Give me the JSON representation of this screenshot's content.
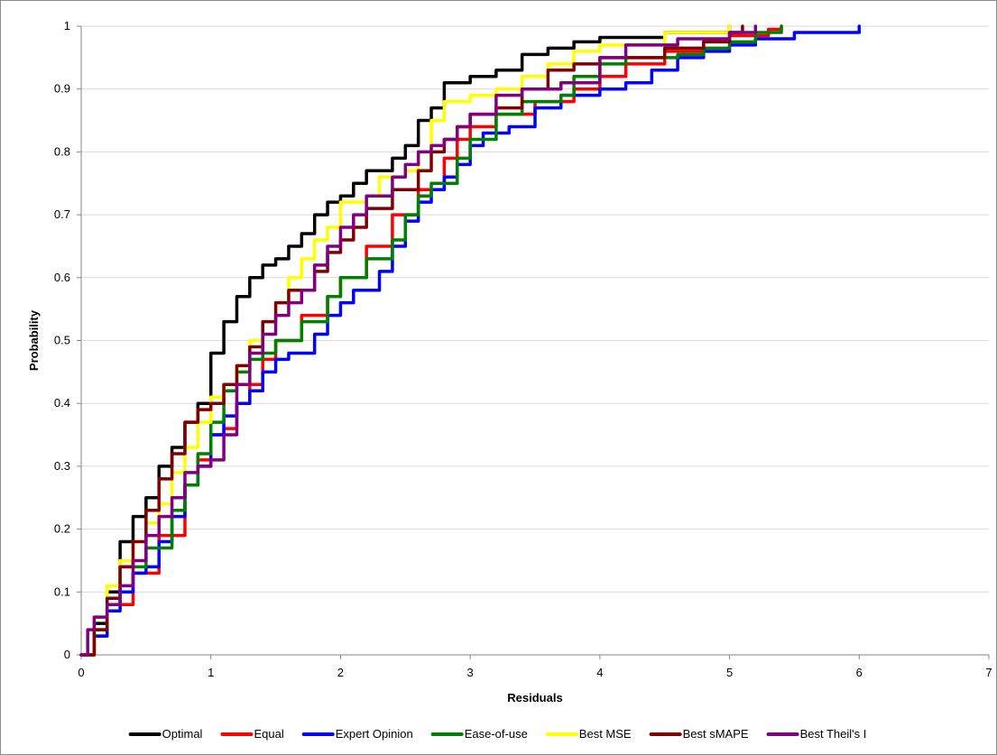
{
  "chart_data": {
    "type": "line",
    "title": "",
    "xlabel": "Residuals",
    "ylabel": "Probability",
    "xlim": [
      0,
      7
    ],
    "ylim": [
      0,
      1
    ],
    "x_ticks": [
      "0",
      "1",
      "2",
      "3",
      "4",
      "5",
      "6",
      "7"
    ],
    "y_ticks": [
      "0",
      "0.1",
      "0.2",
      "0.3",
      "0.4",
      "0.5",
      "0.6",
      "0.7",
      "0.8",
      "0.9",
      "1"
    ],
    "grid": "horizontal major gridlines",
    "legend_position": "bottom",
    "series": [
      {
        "name": "Optimal",
        "color": "#000000",
        "points": [
          [
            0,
            0
          ],
          [
            0.1,
            0.05
          ],
          [
            0.2,
            0.1
          ],
          [
            0.3,
            0.18
          ],
          [
            0.4,
            0.22
          ],
          [
            0.5,
            0.25
          ],
          [
            0.6,
            0.3
          ],
          [
            0.7,
            0.33
          ],
          [
            0.8,
            0.37
          ],
          [
            0.9,
            0.4
          ],
          [
            1.0,
            0.48
          ],
          [
            1.1,
            0.53
          ],
          [
            1.2,
            0.57
          ],
          [
            1.3,
            0.6
          ],
          [
            1.4,
            0.62
          ],
          [
            1.5,
            0.63
          ],
          [
            1.6,
            0.65
          ],
          [
            1.7,
            0.67
          ],
          [
            1.8,
            0.7
          ],
          [
            1.9,
            0.72
          ],
          [
            2.0,
            0.73
          ],
          [
            2.1,
            0.75
          ],
          [
            2.2,
            0.77
          ],
          [
            2.4,
            0.79
          ],
          [
            2.5,
            0.81
          ],
          [
            2.6,
            0.85
          ],
          [
            2.7,
            0.87
          ],
          [
            2.8,
            0.91
          ],
          [
            3.0,
            0.92
          ],
          [
            3.2,
            0.93
          ],
          [
            3.4,
            0.955
          ],
          [
            3.6,
            0.965
          ],
          [
            3.8,
            0.975
          ],
          [
            4.0,
            0.982
          ],
          [
            4.5,
            0.99
          ],
          [
            5.0,
            1.0
          ]
        ]
      },
      {
        "name": "Equal",
        "color": "#ff0000",
        "points": [
          [
            0,
            0
          ],
          [
            0.1,
            0.03
          ],
          [
            0.2,
            0.08
          ],
          [
            0.4,
            0.13
          ],
          [
            0.6,
            0.19
          ],
          [
            0.8,
            0.27
          ],
          [
            0.9,
            0.31
          ],
          [
            1.0,
            0.35
          ],
          [
            1.1,
            0.36
          ],
          [
            1.2,
            0.4
          ],
          [
            1.3,
            0.43
          ],
          [
            1.4,
            0.47
          ],
          [
            1.5,
            0.5
          ],
          [
            1.7,
            0.54
          ],
          [
            1.9,
            0.57
          ],
          [
            2.0,
            0.6
          ],
          [
            2.2,
            0.65
          ],
          [
            2.4,
            0.7
          ],
          [
            2.6,
            0.74
          ],
          [
            2.8,
            0.79
          ],
          [
            2.9,
            0.82
          ],
          [
            3.0,
            0.84
          ],
          [
            3.2,
            0.86
          ],
          [
            3.5,
            0.88
          ],
          [
            3.8,
            0.9
          ],
          [
            4.0,
            0.92
          ],
          [
            4.2,
            0.94
          ],
          [
            4.5,
            0.96
          ],
          [
            4.8,
            0.975
          ],
          [
            5.0,
            0.985
          ],
          [
            5.3,
            0.995
          ],
          [
            5.4,
            1.0
          ]
        ]
      },
      {
        "name": "Expert Opinion",
        "color": "#0000ff",
        "points": [
          [
            0,
            0
          ],
          [
            0.1,
            0.03
          ],
          [
            0.2,
            0.07
          ],
          [
            0.3,
            0.1
          ],
          [
            0.4,
            0.13
          ],
          [
            0.5,
            0.14
          ],
          [
            0.6,
            0.18
          ],
          [
            0.7,
            0.22
          ],
          [
            0.8,
            0.27
          ],
          [
            0.9,
            0.3
          ],
          [
            1.0,
            0.35
          ],
          [
            1.1,
            0.38
          ],
          [
            1.2,
            0.4
          ],
          [
            1.3,
            0.42
          ],
          [
            1.4,
            0.45
          ],
          [
            1.5,
            0.47
          ],
          [
            1.6,
            0.48
          ],
          [
            1.8,
            0.51
          ],
          [
            1.9,
            0.54
          ],
          [
            2.0,
            0.56
          ],
          [
            2.1,
            0.58
          ],
          [
            2.3,
            0.61
          ],
          [
            2.4,
            0.65
          ],
          [
            2.5,
            0.69
          ],
          [
            2.6,
            0.72
          ],
          [
            2.7,
            0.74
          ],
          [
            2.8,
            0.76
          ],
          [
            2.9,
            0.78
          ],
          [
            3.0,
            0.81
          ],
          [
            3.1,
            0.83
          ],
          [
            3.3,
            0.84
          ],
          [
            3.5,
            0.87
          ],
          [
            3.7,
            0.89
          ],
          [
            4.0,
            0.9
          ],
          [
            4.2,
            0.91
          ],
          [
            4.4,
            0.93
          ],
          [
            4.6,
            0.95
          ],
          [
            4.8,
            0.96
          ],
          [
            5.0,
            0.97
          ],
          [
            5.2,
            0.98
          ],
          [
            5.5,
            0.99
          ],
          [
            6.0,
            1.0
          ]
        ]
      },
      {
        "name": "Ease-of-use",
        "color": "#008000",
        "points": [
          [
            0,
            0
          ],
          [
            0.1,
            0.04
          ],
          [
            0.2,
            0.08
          ],
          [
            0.3,
            0.14
          ],
          [
            0.5,
            0.17
          ],
          [
            0.7,
            0.23
          ],
          [
            0.8,
            0.27
          ],
          [
            0.9,
            0.32
          ],
          [
            1.0,
            0.37
          ],
          [
            1.1,
            0.42
          ],
          [
            1.2,
            0.45
          ],
          [
            1.3,
            0.47
          ],
          [
            1.4,
            0.48
          ],
          [
            1.5,
            0.5
          ],
          [
            1.7,
            0.53
          ],
          [
            1.9,
            0.57
          ],
          [
            2.0,
            0.6
          ],
          [
            2.2,
            0.63
          ],
          [
            2.4,
            0.66
          ],
          [
            2.5,
            0.7
          ],
          [
            2.6,
            0.73
          ],
          [
            2.7,
            0.75
          ],
          [
            2.9,
            0.79
          ],
          [
            3.0,
            0.82
          ],
          [
            3.2,
            0.86
          ],
          [
            3.4,
            0.88
          ],
          [
            3.7,
            0.89
          ],
          [
            3.8,
            0.92
          ],
          [
            4.0,
            0.94
          ],
          [
            4.2,
            0.95
          ],
          [
            4.6,
            0.955
          ],
          [
            4.8,
            0.965
          ],
          [
            5.0,
            0.975
          ],
          [
            5.2,
            0.99
          ],
          [
            5.4,
            1.0
          ]
        ]
      },
      {
        "name": "Best MSE",
        "color": "#ffff00",
        "points": [
          [
            0,
            0
          ],
          [
            0.1,
            0.06
          ],
          [
            0.2,
            0.11
          ],
          [
            0.3,
            0.15
          ],
          [
            0.4,
            0.18
          ],
          [
            0.5,
            0.21
          ],
          [
            0.6,
            0.24
          ],
          [
            0.7,
            0.29
          ],
          [
            0.8,
            0.33
          ],
          [
            0.9,
            0.37
          ],
          [
            1.0,
            0.41
          ],
          [
            1.1,
            0.43
          ],
          [
            1.2,
            0.46
          ],
          [
            1.3,
            0.5
          ],
          [
            1.4,
            0.53
          ],
          [
            1.5,
            0.56
          ],
          [
            1.6,
            0.6
          ],
          [
            1.7,
            0.63
          ],
          [
            1.8,
            0.66
          ],
          [
            1.9,
            0.68
          ],
          [
            2.0,
            0.72
          ],
          [
            2.2,
            0.73
          ],
          [
            2.3,
            0.76
          ],
          [
            2.5,
            0.77
          ],
          [
            2.6,
            0.8
          ],
          [
            2.7,
            0.85
          ],
          [
            2.8,
            0.88
          ],
          [
            3.0,
            0.89
          ],
          [
            3.2,
            0.9
          ],
          [
            3.4,
            0.92
          ],
          [
            3.6,
            0.94
          ],
          [
            3.8,
            0.96
          ],
          [
            4.0,
            0.97
          ],
          [
            4.5,
            0.99
          ],
          [
            5.0,
            1.0
          ]
        ]
      },
      {
        "name": "Best sMAPE",
        "color": "#800000",
        "points": [
          [
            0,
            0
          ],
          [
            0.1,
            0.04
          ],
          [
            0.2,
            0.09
          ],
          [
            0.3,
            0.14
          ],
          [
            0.4,
            0.18
          ],
          [
            0.5,
            0.23
          ],
          [
            0.6,
            0.28
          ],
          [
            0.7,
            0.32
          ],
          [
            0.8,
            0.37
          ],
          [
            0.9,
            0.39
          ],
          [
            1.0,
            0.4
          ],
          [
            1.1,
            0.43
          ],
          [
            1.2,
            0.46
          ],
          [
            1.3,
            0.49
          ],
          [
            1.4,
            0.53
          ],
          [
            1.5,
            0.56
          ],
          [
            1.6,
            0.58
          ],
          [
            1.8,
            0.61
          ],
          [
            1.9,
            0.64
          ],
          [
            2.0,
            0.66
          ],
          [
            2.1,
            0.68
          ],
          [
            2.2,
            0.71
          ],
          [
            2.4,
            0.74
          ],
          [
            2.6,
            0.77
          ],
          [
            2.7,
            0.8
          ],
          [
            2.8,
            0.82
          ],
          [
            2.9,
            0.84
          ],
          [
            3.0,
            0.86
          ],
          [
            3.2,
            0.87
          ],
          [
            3.4,
            0.9
          ],
          [
            3.6,
            0.93
          ],
          [
            3.8,
            0.94
          ],
          [
            4.0,
            0.95
          ],
          [
            4.5,
            0.965
          ],
          [
            4.8,
            0.975
          ],
          [
            5.0,
            0.99
          ],
          [
            5.1,
            1.0
          ]
        ]
      },
      {
        "name": "Best Theil's I",
        "color": "#800080",
        "points": [
          [
            0,
            0
          ],
          [
            0.05,
            0.04
          ],
          [
            0.1,
            0.06
          ],
          [
            0.2,
            0.08
          ],
          [
            0.3,
            0.11
          ],
          [
            0.4,
            0.15
          ],
          [
            0.5,
            0.19
          ],
          [
            0.6,
            0.22
          ],
          [
            0.7,
            0.25
          ],
          [
            0.8,
            0.29
          ],
          [
            0.9,
            0.3
          ],
          [
            1.0,
            0.31
          ],
          [
            1.1,
            0.35
          ],
          [
            1.2,
            0.43
          ],
          [
            1.3,
            0.48
          ],
          [
            1.4,
            0.51
          ],
          [
            1.5,
            0.54
          ],
          [
            1.6,
            0.56
          ],
          [
            1.7,
            0.58
          ],
          [
            1.8,
            0.62
          ],
          [
            1.9,
            0.65
          ],
          [
            2.0,
            0.68
          ],
          [
            2.1,
            0.7
          ],
          [
            2.2,
            0.73
          ],
          [
            2.4,
            0.76
          ],
          [
            2.5,
            0.78
          ],
          [
            2.6,
            0.8
          ],
          [
            2.7,
            0.81
          ],
          [
            2.8,
            0.82
          ],
          [
            2.9,
            0.84
          ],
          [
            3.0,
            0.86
          ],
          [
            3.2,
            0.89
          ],
          [
            3.4,
            0.9
          ],
          [
            3.5,
            0.9
          ],
          [
            3.7,
            0.91
          ],
          [
            4.0,
            0.95
          ],
          [
            4.2,
            0.97
          ],
          [
            4.6,
            0.98
          ],
          [
            5.0,
            0.99
          ],
          [
            5.2,
            1.0
          ]
        ]
      }
    ]
  }
}
